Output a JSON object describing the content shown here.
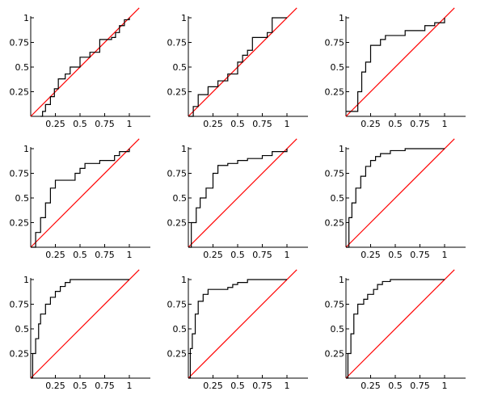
{
  "chart_data": [
    {
      "type": "line",
      "xlim": [
        0,
        1.2
      ],
      "ylim": [
        0,
        1.2
      ],
      "xticks": [
        "0.25",
        "0.5",
        "0.75",
        "1"
      ],
      "yticks": [
        "0.25",
        "0.5",
        "0.75",
        "1"
      ],
      "grid": false,
      "series": [
        {
          "color": "#ff0000",
          "x": [
            0,
            1.1
          ],
          "y": [
            0,
            1.1
          ]
        },
        {
          "color": "#000000",
          "x": [
            0.1,
            0.12,
            0.15,
            0.2,
            0.24,
            0.28,
            0.35,
            0.4,
            0.5,
            0.6,
            0.7,
            0.82,
            0.86,
            0.9,
            0.95,
            1.0
          ],
          "y": [
            0.0,
            0.05,
            0.12,
            0.2,
            0.28,
            0.38,
            0.43,
            0.5,
            0.6,
            0.65,
            0.78,
            0.8,
            0.85,
            0.92,
            0.98,
            1.0
          ]
        }
      ]
    },
    {
      "type": "line",
      "xlim": [
        0,
        1.2
      ],
      "ylim": [
        0,
        1.2
      ],
      "xticks": [
        "0.25",
        "0.5",
        "0.75",
        "1"
      ],
      "yticks": [
        "0.25",
        "0.5",
        "0.75",
        "1"
      ],
      "grid": false,
      "series": [
        {
          "color": "#ff0000",
          "x": [
            0,
            1.1
          ],
          "y": [
            0,
            1.1
          ]
        },
        {
          "color": "#000000",
          "x": [
            0,
            0.05,
            0.1,
            0.2,
            0.3,
            0.4,
            0.5,
            0.55,
            0.6,
            0.65,
            0.8,
            0.85,
            1.0
          ],
          "y": [
            0,
            0.1,
            0.22,
            0.3,
            0.36,
            0.43,
            0.55,
            0.62,
            0.67,
            0.8,
            0.85,
            1.0,
            1.0
          ]
        }
      ]
    },
    {
      "type": "line",
      "xlim": [
        0,
        1.2
      ],
      "ylim": [
        0,
        1.2
      ],
      "xticks": [
        "0.25",
        "0.5",
        "0.75",
        "1"
      ],
      "yticks": [
        "0.25",
        "0.5",
        "0.75",
        "1"
      ],
      "grid": false,
      "series": [
        {
          "color": "#ff0000",
          "x": [
            0,
            1.1
          ],
          "y": [
            0,
            1.1
          ]
        },
        {
          "color": "#000000",
          "x": [
            0,
            0.08,
            0.12,
            0.16,
            0.2,
            0.25,
            0.35,
            0.4,
            0.6,
            0.8,
            0.9,
            1.0
          ],
          "y": [
            0.05,
            0.05,
            0.25,
            0.45,
            0.55,
            0.72,
            0.78,
            0.82,
            0.87,
            0.92,
            0.95,
            1.0
          ]
        }
      ]
    },
    {
      "type": "line",
      "xlim": [
        0,
        1.2
      ],
      "ylim": [
        0,
        1.2
      ],
      "xticks": [
        "0.25",
        "0.5",
        "0.75",
        "1"
      ],
      "yticks": [
        "0.25",
        "0.5",
        "0.75",
        "1"
      ],
      "grid": false,
      "series": [
        {
          "color": "#ff0000",
          "x": [
            0,
            1.1
          ],
          "y": [
            0,
            1.1
          ]
        },
        {
          "color": "#000000",
          "x": [
            0,
            0.05,
            0.1,
            0.15,
            0.2,
            0.25,
            0.35,
            0.45,
            0.5,
            0.55,
            0.7,
            0.85,
            0.9,
            1.0
          ],
          "y": [
            0,
            0.15,
            0.3,
            0.45,
            0.6,
            0.68,
            0.68,
            0.75,
            0.8,
            0.85,
            0.88,
            0.93,
            0.97,
            1.0
          ]
        }
      ]
    },
    {
      "type": "line",
      "xlim": [
        0,
        1.2
      ],
      "ylim": [
        0,
        1.2
      ],
      "xticks": [
        "0.25",
        "0.5",
        "0.75",
        "1"
      ],
      "yticks": [
        "0.25",
        "0.5",
        "0.75",
        "1"
      ],
      "grid": false,
      "series": [
        {
          "color": "#ff0000",
          "x": [
            0,
            1.1
          ],
          "y": [
            0,
            1.1
          ]
        },
        {
          "color": "#000000",
          "x": [
            0,
            0.03,
            0.08,
            0.12,
            0.18,
            0.25,
            0.3,
            0.4,
            0.5,
            0.6,
            0.75,
            0.85,
            1.0
          ],
          "y": [
            0,
            0.25,
            0.4,
            0.5,
            0.6,
            0.75,
            0.83,
            0.85,
            0.88,
            0.9,
            0.93,
            0.97,
            1.0
          ]
        }
      ]
    },
    {
      "type": "line",
      "xlim": [
        0,
        1.2
      ],
      "ylim": [
        0,
        1.2
      ],
      "xticks": [
        "0.25",
        "0.5",
        "0.75",
        "1"
      ],
      "yticks": [
        "0.25",
        "0.5",
        "0.75",
        "1"
      ],
      "grid": false,
      "series": [
        {
          "color": "#ff0000",
          "x": [
            0,
            1.1
          ],
          "y": [
            0,
            1.1
          ]
        },
        {
          "color": "#000000",
          "x": [
            0,
            0.03,
            0.06,
            0.1,
            0.15,
            0.2,
            0.25,
            0.3,
            0.35,
            0.45,
            0.6,
            1.0
          ],
          "y": [
            0,
            0.3,
            0.45,
            0.6,
            0.72,
            0.82,
            0.88,
            0.92,
            0.95,
            0.98,
            1.0,
            1.0
          ]
        }
      ]
    },
    {
      "type": "line",
      "xlim": [
        0,
        1.2
      ],
      "ylim": [
        0,
        1.2
      ],
      "xticks": [
        "0.25",
        "0.5",
        "0.75",
        "1"
      ],
      "yticks": [
        "0.25",
        "0.5",
        "0.75",
        "1"
      ],
      "grid": false,
      "series": [
        {
          "color": "#ff0000",
          "x": [
            0,
            1.1
          ],
          "y": [
            0,
            1.1
          ]
        },
        {
          "color": "#000000",
          "x": [
            0,
            0.02,
            0.05,
            0.08,
            0.1,
            0.15,
            0.2,
            0.25,
            0.3,
            0.35,
            0.4,
            1.0
          ],
          "y": [
            0,
            0.25,
            0.4,
            0.55,
            0.65,
            0.75,
            0.82,
            0.88,
            0.93,
            0.97,
            1.0,
            1.0
          ]
        }
      ]
    },
    {
      "type": "line",
      "xlim": [
        0,
        1.2
      ],
      "ylim": [
        0,
        1.2
      ],
      "xticks": [
        "0.25",
        "0.5",
        "0.75",
        "1"
      ],
      "yticks": [
        "0.25",
        "0.5",
        "0.75",
        "1"
      ],
      "grid": false,
      "series": [
        {
          "color": "#ff0000",
          "x": [
            0,
            1.1
          ],
          "y": [
            0,
            1.1
          ]
        },
        {
          "color": "#000000",
          "x": [
            0,
            0.02,
            0.04,
            0.07,
            0.1,
            0.15,
            0.2,
            0.4,
            0.45,
            0.5,
            0.6,
            1.0
          ],
          "y": [
            0,
            0.3,
            0.45,
            0.65,
            0.78,
            0.85,
            0.9,
            0.92,
            0.95,
            0.97,
            1.0,
            1.0
          ]
        }
      ]
    },
    {
      "type": "line",
      "xlim": [
        0,
        1.2
      ],
      "ylim": [
        0,
        1.2
      ],
      "xticks": [
        "0.25",
        "0.5",
        "0.75",
        "1"
      ],
      "yticks": [
        "0.25",
        "0.5",
        "0.75",
        "1"
      ],
      "grid": false,
      "series": [
        {
          "color": "#ff0000",
          "x": [
            0,
            1.1
          ],
          "y": [
            0,
            1.1
          ]
        },
        {
          "color": "#000000",
          "x": [
            0,
            0.02,
            0.05,
            0.08,
            0.12,
            0.18,
            0.22,
            0.28,
            0.32,
            0.37,
            0.45,
            1.0
          ],
          "y": [
            0,
            0.25,
            0.45,
            0.65,
            0.75,
            0.8,
            0.85,
            0.9,
            0.95,
            0.98,
            1.0,
            1.0
          ]
        }
      ]
    }
  ]
}
